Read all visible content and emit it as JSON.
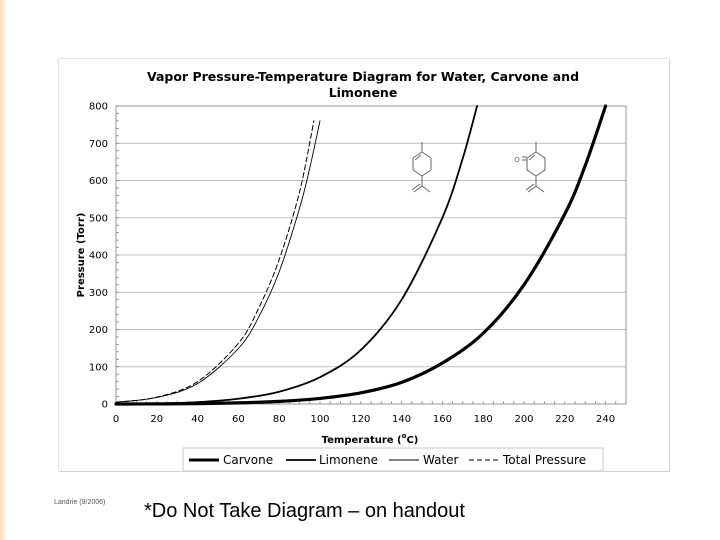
{
  "slide": {
    "credit": "Landrie (9/2006)",
    "note": "*Do Not Take Diagram – on handout"
  },
  "chart_data": {
    "type": "line",
    "title": "Vapor Pressure-Temperature Diagram for Water, Carvone and Limonene",
    "title_lines": [
      "Vapor Pressure-Temperature Diagram for Water, Carvone and",
      "Limonene"
    ],
    "xlabel": "Temperature (°C)",
    "xlabel_main": "Temperature (",
    "xlabel_sup": "o",
    "xlabel_tail": "C)",
    "ylabel": "Pressure (Torr)",
    "xlim": [
      0,
      250
    ],
    "ylim": [
      0,
      800
    ],
    "xticks": [
      0,
      20,
      40,
      60,
      80,
      100,
      120,
      140,
      160,
      180,
      200,
      220,
      240
    ],
    "yticks": [
      0,
      100,
      200,
      300,
      400,
      500,
      600,
      700,
      800
    ],
    "grid": true,
    "legend_position": "bottom",
    "series": [
      {
        "name": "Carvone",
        "style": "thick",
        "x": [
          0,
          20,
          40,
          60,
          80,
          100,
          120,
          140,
          160,
          180,
          200,
          220,
          230,
          240
        ],
        "y": [
          0,
          0.3,
          1,
          3,
          7,
          15,
          30,
          58,
          110,
          190,
          320,
          510,
          640,
          800
        ]
      },
      {
        "name": "Limonene",
        "style": "medium",
        "x": [
          0,
          20,
          40,
          60,
          80,
          100,
          120,
          140,
          160,
          170,
          177
        ],
        "y": [
          0,
          1,
          5,
          14,
          33,
          72,
          145,
          280,
          500,
          660,
          800
        ]
      },
      {
        "name": "Water",
        "style": "thin",
        "x": [
          0,
          20,
          40,
          60,
          70,
          80,
          90,
          95,
          100
        ],
        "y": [
          4.6,
          17.5,
          55,
          149,
          234,
          355,
          526,
          634,
          760
        ]
      },
      {
        "name": "Total Pressure",
        "style": "dashed",
        "x": [
          0,
          20,
          40,
          60,
          70,
          80,
          90,
          97
        ],
        "y": [
          4.6,
          18.5,
          60,
          163,
          258,
          388,
          570,
          760
        ]
      }
    ],
    "structures": [
      {
        "name": "limonene-structure",
        "label": ""
      },
      {
        "name": "carvone-structure",
        "label": "O"
      }
    ]
  }
}
